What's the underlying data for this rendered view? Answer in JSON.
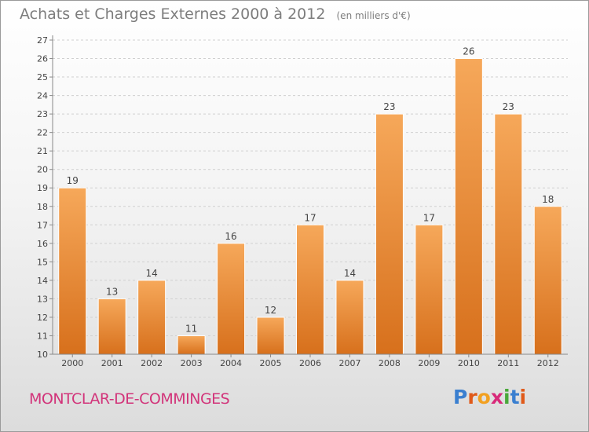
{
  "header": {
    "title": "Achats et Charges Externes 2000 à 2012",
    "subtitle": "(en milliers d'€)"
  },
  "footer": {
    "location": "MONTCLAR-DE-COMMINGES",
    "logo_letters": [
      "P",
      "r",
      "o",
      "x",
      "i",
      "t",
      "i"
    ],
    "logo_colors": [
      "#3a7fd0",
      "#e05a1a",
      "#f2a020",
      "#d82a7a",
      "#4aa83a",
      "#3a7fd0",
      "#e05a1a"
    ]
  },
  "colors": {
    "bar_top": "#f6a85a",
    "bar_bottom": "#d7701c",
    "axis": "#888888",
    "grid": "#d0d0d0",
    "text": "#444444"
  },
  "chart_data": {
    "type": "bar",
    "title": "Achats et Charges Externes 2000 à 2012",
    "subtitle": "(en milliers d'€)",
    "categories": [
      "2000",
      "2001",
      "2002",
      "2003",
      "2004",
      "2005",
      "2006",
      "2007",
      "2008",
      "2009",
      "2010",
      "2011",
      "2012"
    ],
    "values": [
      19,
      13,
      14,
      11,
      16,
      12,
      17,
      14,
      23,
      17,
      26,
      23,
      18
    ],
    "ylim": [
      10,
      27
    ],
    "yticks": [
      10,
      11,
      12,
      13,
      14,
      15,
      16,
      17,
      18,
      19,
      20,
      21,
      22,
      23,
      24,
      25,
      26,
      27
    ],
    "grid": true,
    "data_labels": true
  }
}
